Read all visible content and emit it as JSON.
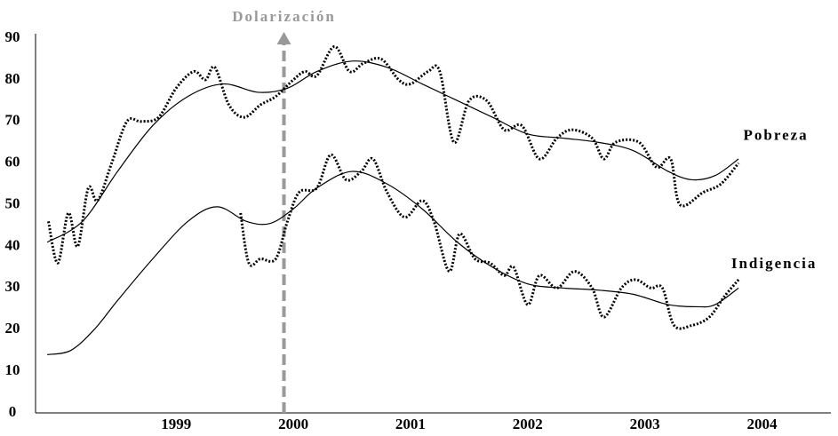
{
  "chart_data": {
    "type": "line",
    "annotation": {
      "text": "Dolarización",
      "x": 1999.92,
      "color": "#999999"
    },
    "xlim": [
      1997.8,
      2004.55
    ],
    "xticks": [
      1999,
      2000,
      2001,
      2002,
      2003,
      2004
    ],
    "ylim": [
      0,
      90
    ],
    "yticks": [
      0,
      10,
      20,
      30,
      40,
      50,
      60,
      70,
      80,
      90
    ],
    "series": [
      {
        "name": "Pobreza",
        "color": "#000000",
        "style": "dotted",
        "x": [
          1997.91,
          1997.99,
          1998.08,
          1998.16,
          1998.25,
          1998.33,
          1998.45,
          1998.58,
          1998.7,
          1998.85,
          1999.0,
          1999.15,
          1999.25,
          1999.33,
          1999.45,
          1999.58,
          1999.72,
          1999.85,
          2000.0,
          2000.1,
          2000.2,
          2000.35,
          2000.48,
          2000.6,
          2000.75,
          2000.9,
          2001.0,
          2001.15,
          2001.25,
          2001.37,
          2001.5,
          2001.65,
          2001.8,
          2001.95,
          2002.1,
          2002.25,
          2002.38,
          2002.55,
          2002.65,
          2002.75,
          2002.95,
          2003.1,
          2003.22,
          2003.3,
          2003.5,
          2003.65,
          2003.8
        ],
        "values": [
          46,
          36,
          48,
          40,
          54,
          51,
          60,
          70,
          70,
          71,
          78,
          82,
          80,
          83,
          74,
          71,
          74,
          76,
          80,
          82,
          81,
          88,
          82,
          84,
          85,
          80,
          79,
          82,
          82,
          65,
          75,
          75,
          68,
          69,
          61,
          66,
          68,
          66,
          61,
          65,
          65,
          59,
          61,
          50,
          53,
          55,
          60
        ]
      },
      {
        "color": "#000000",
        "style": "solid",
        "x": [
          1997.9,
          1998.2,
          1998.5,
          1998.8,
          1999.1,
          1999.4,
          1999.7,
          1999.95,
          2000.2,
          2000.5,
          2000.8,
          2001.1,
          2001.4,
          2001.7,
          2002.0,
          2002.3,
          2002.6,
          2002.9,
          2003.2,
          2003.4,
          2003.6,
          2003.8
        ],
        "values": [
          41,
          46,
          58,
          69,
          76,
          79,
          77,
          78,
          82,
          84.5,
          83,
          79,
          75,
          71,
          67,
          66,
          65,
          63,
          58,
          56,
          57,
          61
        ]
      },
      {
        "name": "Indigencia",
        "color": "#000000",
        "style": "dotted",
        "x": [
          1999.55,
          1999.62,
          1999.72,
          1999.85,
          1999.95,
          2000.05,
          2000.2,
          2000.32,
          2000.45,
          2000.58,
          2000.68,
          2000.8,
          2000.95,
          2001.1,
          2001.2,
          2001.33,
          2001.42,
          2001.55,
          2001.68,
          2001.8,
          2001.88,
          2002.0,
          2002.1,
          2002.25,
          2002.4,
          2002.55,
          2002.65,
          2002.8,
          2002.92,
          2003.05,
          2003.15,
          2003.25,
          2003.4,
          2003.55,
          2003.68,
          2003.8
        ],
        "values": [
          48,
          36,
          37,
          37,
          46,
          53,
          54,
          62,
          56,
          58,
          61,
          53,
          47,
          51,
          46,
          34,
          43,
          37,
          36,
          33,
          35,
          26,
          33,
          30,
          34,
          30,
          23,
          30,
          32,
          30,
          30,
          21,
          21,
          23,
          28,
          32
        ]
      },
      {
        "color": "#000000",
        "style": "solid",
        "x": [
          1997.9,
          1998.1,
          1998.3,
          1998.5,
          1998.8,
          1999.1,
          1999.35,
          1999.6,
          1999.8,
          2000.0,
          2000.2,
          2000.5,
          2000.8,
          2001.1,
          2001.4,
          2001.7,
          2002.0,
          2002.3,
          2002.6,
          2002.9,
          2003.2,
          2003.45,
          2003.6,
          2003.8
        ],
        "values": [
          14,
          15,
          20,
          27,
          37,
          46,
          49.5,
          46,
          45.5,
          49,
          54,
          58,
          55,
          49,
          41,
          35,
          31,
          30,
          29.5,
          28.5,
          26,
          25.5,
          26,
          30
        ]
      }
    ]
  }
}
